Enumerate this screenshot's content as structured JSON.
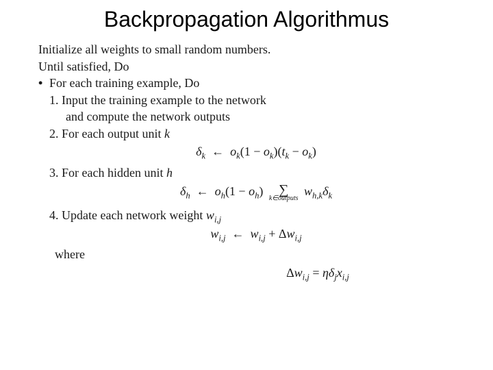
{
  "slide": {
    "title": "Backpropagation Algorithmus",
    "title_fontsize": 32,
    "title_color": "#000000",
    "background_color": "#ffffff",
    "body_font": "Times New Roman",
    "body_fontsize": 18,
    "body_color": "#1a1a1a",
    "lines": {
      "init": "Initialize all weights to small random numbers.",
      "until": "Until satisfied, Do",
      "foreach": "For each training example, Do",
      "step1a": "1. Input the training example to the network",
      "step1b": "and compute the network outputs",
      "step2": "2. For each output unit",
      "step2_k": "k",
      "step3": "3. For each hidden unit",
      "step3_h": "h",
      "step4": "4. Update each network weight",
      "step4_w": "w",
      "step4_ij": "i,j",
      "where": "where"
    },
    "formulas": {
      "delta_k": {
        "lhs_sym": "δ",
        "lhs_sub": "k",
        "arrow": "←",
        "o": "o",
        "t": "t"
      },
      "delta_h": {
        "lhs_sym": "δ",
        "lhs_sub": "h",
        "arrow": "←",
        "o": "o",
        "sum_sub": "k∈outputs",
        "w": "w",
        "w_sub": "h,k"
      },
      "update_w": {
        "w": "w",
        "ij": "i,j",
        "arrow": "←",
        "delta": "Δ"
      },
      "delta_w": {
        "delta": "Δ",
        "w": "w",
        "ij": "i,j",
        "eq": "=",
        "eta": "η",
        "dsym": "δ",
        "j": "j",
        "x": "x"
      }
    }
  }
}
